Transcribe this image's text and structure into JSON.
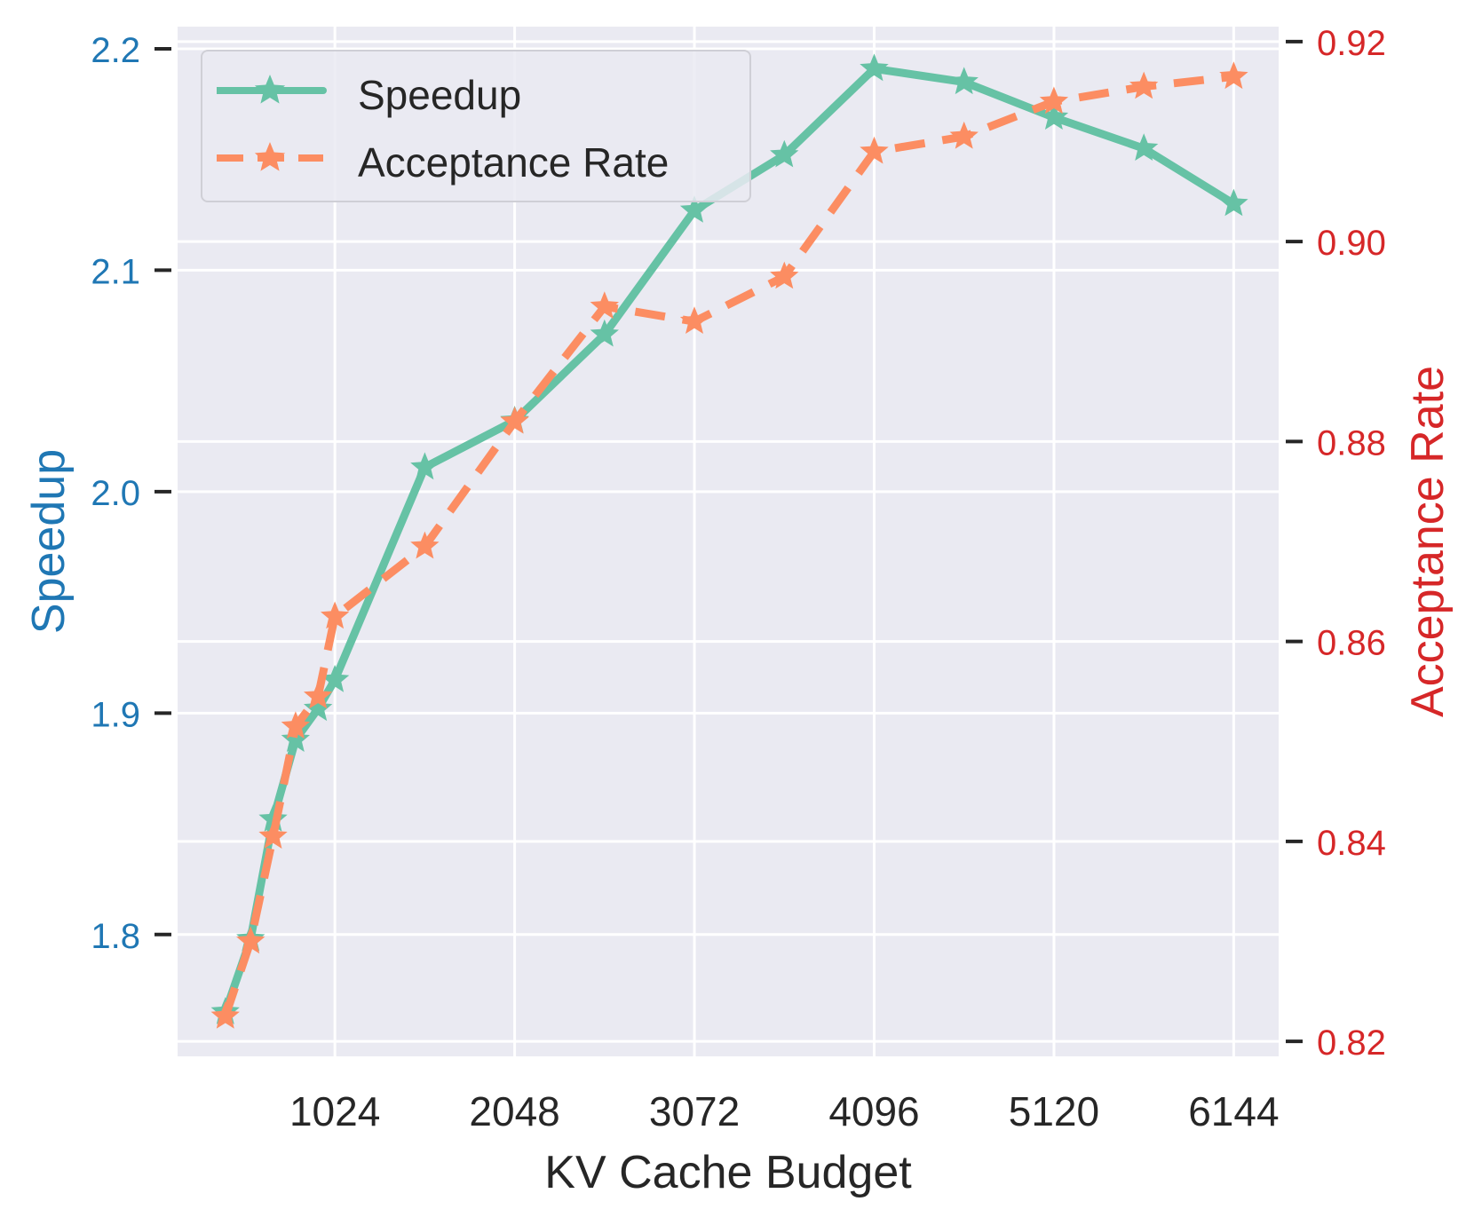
{
  "chart_data": {
    "type": "line",
    "xlabel": "KV Cache Budget",
    "ylabel_left": "Speedup",
    "ylabel_right": "Acceptance Rate",
    "x_ticks": [
      1024,
      2048,
      3072,
      4096,
      5120,
      6144
    ],
    "y_left_ticks": [
      "1.8",
      "1.9",
      "2.0",
      "2.1",
      "2.2"
    ],
    "y_right_ticks": [
      "0.82",
      "0.84",
      "0.86",
      "0.88",
      "0.90",
      "0.92"
    ],
    "xlim": [
      128,
      6400
    ],
    "ylim_left": [
      1.745,
      2.21
    ],
    "ylim_right": [
      0.8185,
      0.9215
    ],
    "grid": true,
    "legend_position": "top-left",
    "colors": {
      "speedup": "#66c2a5",
      "acceptance": "#fc8d62",
      "left_axis_text": "#1f77b4",
      "right_axis_text": "#d62728",
      "background": "#eaeaf2",
      "grid": "#ffffff"
    },
    "series": [
      {
        "name": "Speedup",
        "axis": "left",
        "style": "solid",
        "x": [
          400,
          544,
          672,
          800,
          928,
          1024,
          1536,
          2048,
          2560,
          3072,
          3584,
          4096,
          4608,
          5120,
          5632,
          6144
        ],
        "y": [
          1.765,
          1.798,
          1.852,
          1.888,
          1.902,
          1.915,
          2.011,
          2.032,
          2.071,
          2.127,
          2.152,
          2.191,
          2.185,
          2.169,
          2.155,
          2.13
        ]
      },
      {
        "name": "Acceptance Rate",
        "axis": "right",
        "style": "dashed",
        "x": [
          400,
          544,
          672,
          800,
          928,
          1024,
          1536,
          2048,
          2560,
          3072,
          3584,
          4096,
          4608,
          5120,
          5632,
          6144
        ],
        "y": [
          0.8225,
          0.83,
          0.8405,
          0.8515,
          0.8545,
          0.8625,
          0.8695,
          0.882,
          0.8935,
          0.892,
          0.8965,
          0.909,
          0.9105,
          0.914,
          0.9155,
          0.9165
        ]
      }
    ]
  }
}
